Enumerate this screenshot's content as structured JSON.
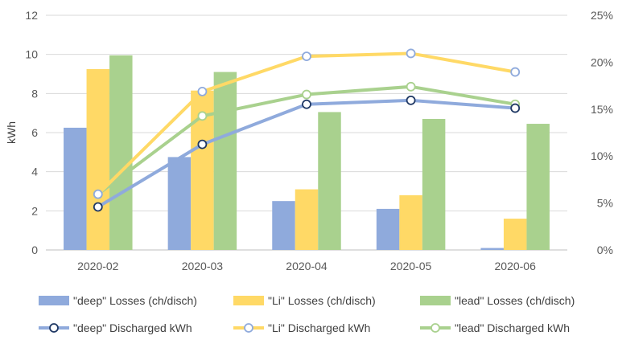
{
  "chart_data": {
    "type": "bar",
    "title": "",
    "xlabel": "",
    "ylabel": "kWh",
    "ylim": [
      0,
      12
    ],
    "y_ticks": [
      "0",
      "2",
      "4",
      "6",
      "8",
      "10",
      "12"
    ],
    "y2lim": [
      0,
      25
    ],
    "y2_ticks": [
      "0%",
      "5%",
      "10%",
      "15%",
      "20%",
      "25%"
    ],
    "grid": true,
    "legend_position": "bottom",
    "categories": [
      "2020-02",
      "2020-03",
      "2020-04",
      "2020-05",
      "2020-06"
    ],
    "bar_series": [
      {
        "name": "\"deep\" Losses (ch/disch)",
        "color": "#8faadc",
        "values": [
          6.25,
          4.75,
          2.5,
          2.1,
          0.1
        ]
      },
      {
        "name": "\"Li\" Losses (ch/disch)",
        "color": "#ffd966",
        "values": [
          9.25,
          8.15,
          3.1,
          2.8,
          1.6
        ]
      },
      {
        "name": "\"lead\" Losses (ch/disch)",
        "color": "#a9d18e",
        "values": [
          9.95,
          9.1,
          7.05,
          6.7,
          6.45
        ]
      }
    ],
    "line_series": [
      {
        "name": "\"deep\" Discharged kWh",
        "color": "#8faadc",
        "marker_edge": "#1f3864",
        "axis": "left",
        "values": [
          2.2,
          5.4,
          7.45,
          7.65,
          7.25
        ]
      },
      {
        "name": "\"Li\" Discharged kWh",
        "color": "#ffd966",
        "marker_edge": "#8faadc",
        "axis": "left",
        "values": [
          2.85,
          8.1,
          9.9,
          10.05,
          9.1
        ]
      },
      {
        "name": "\"lead\" Discharged kWh",
        "color": "#a9d18e",
        "marker_edge": "#a9d18e",
        "axis": "left",
        "values": [
          2.85,
          6.85,
          7.95,
          8.35,
          7.45
        ]
      }
    ]
  }
}
